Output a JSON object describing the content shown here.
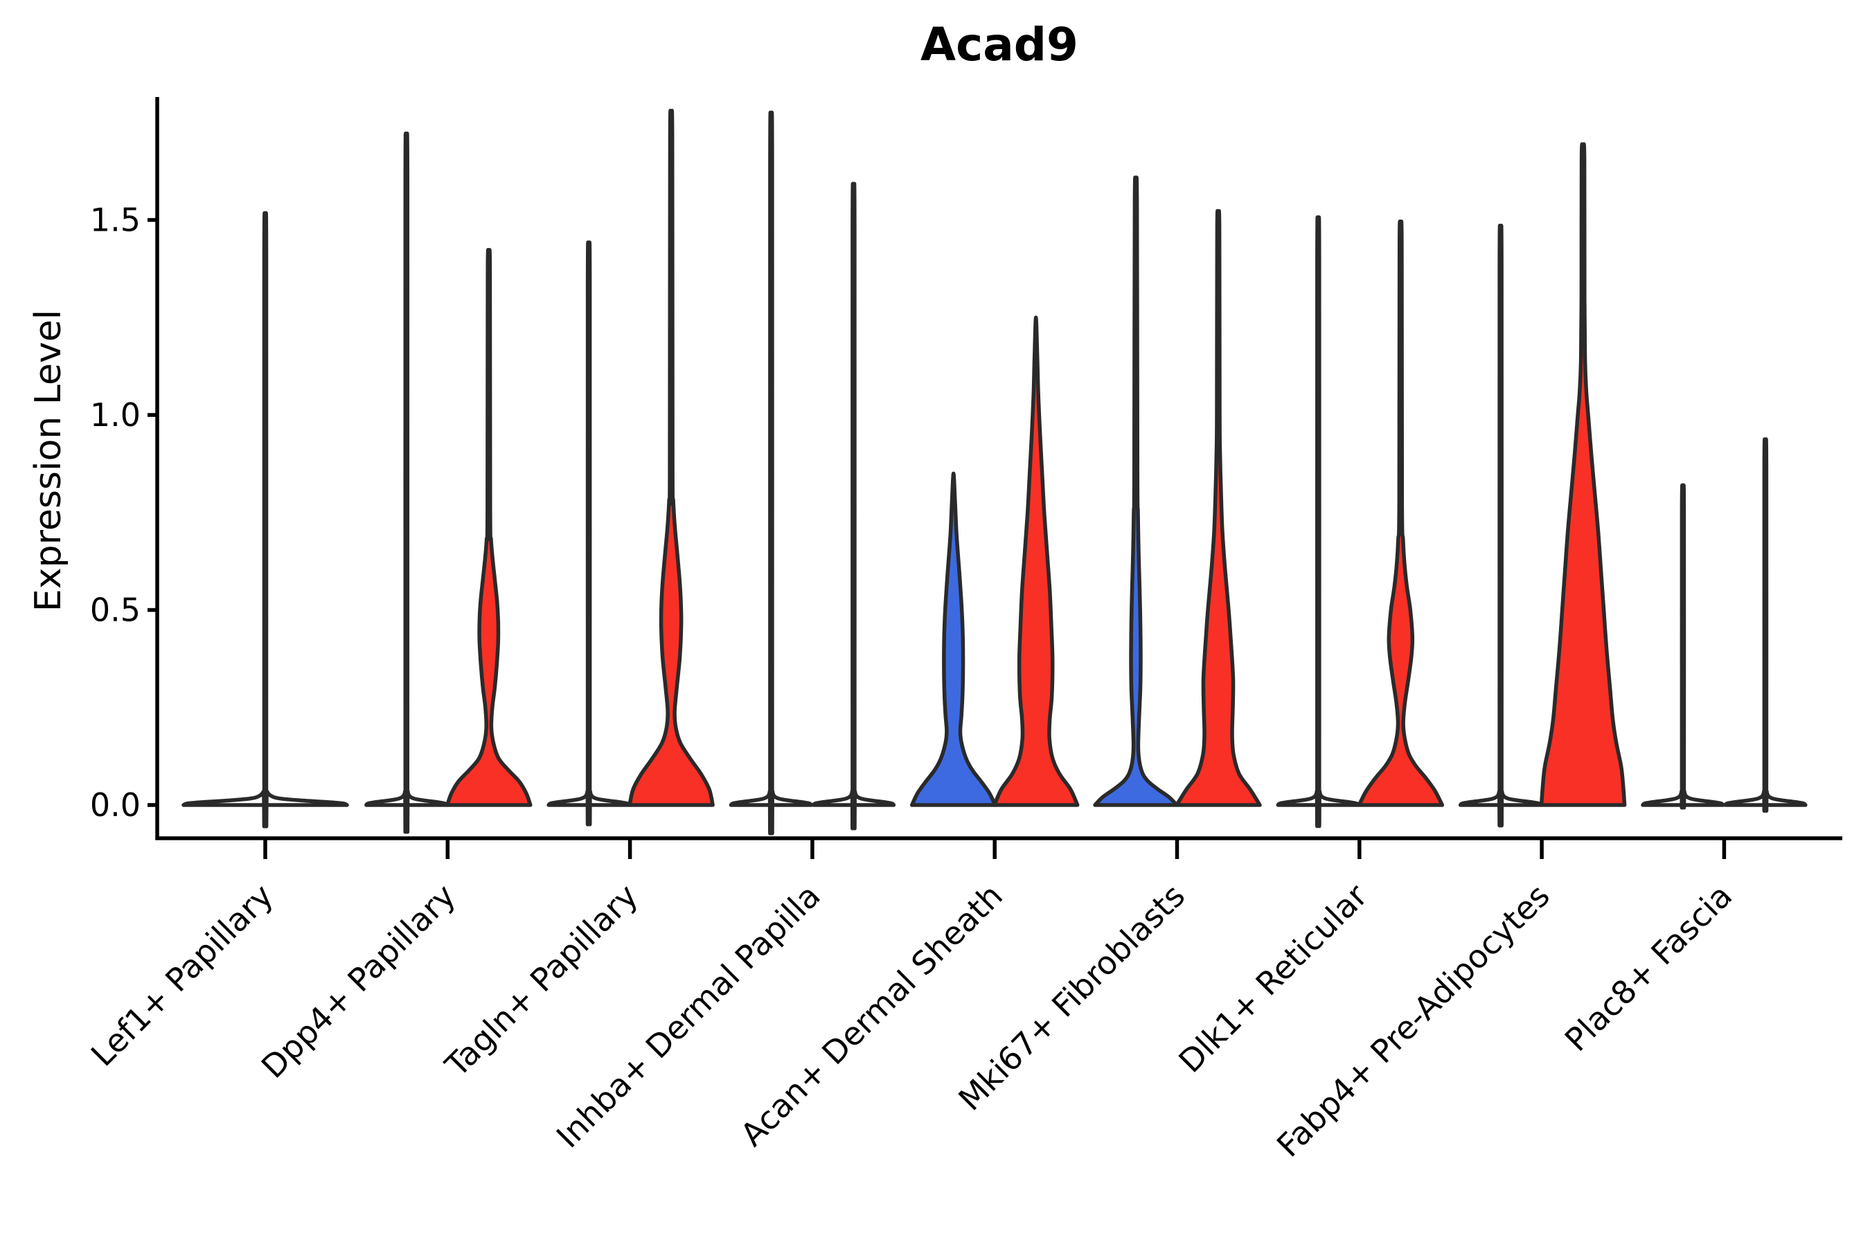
{
  "title": "Acad9",
  "ylabel": "Expression Level",
  "colors": {
    "red": "#f93026",
    "blue": "#3e6ae1",
    "violin_edge": "#2a2a2a",
    "axis": "#000000",
    "background": "#ffffff"
  },
  "chart_data": {
    "type": "violin",
    "title": "Acad9",
    "xlabel": "",
    "ylabel": "Expression Level",
    "ylim": [
      -0.08,
      1.82
    ],
    "grid": "off",
    "legend_position": "none",
    "ytick_labels": [
      "0.0",
      "0.5",
      "1.0",
      "1.5"
    ],
    "ytick_values": [
      0,
      0.5,
      1.0,
      1.5
    ],
    "categories": [
      "Lef1+ Papillary",
      "Dpp4+ Papillary",
      "Tagln+ Papillary",
      "Inhba+ Dermal Papilla",
      "Acan+ Dermal Sheath",
      "Mki67+ Fibroblasts",
      "Dlk1+ Reticular",
      "Fabp4+ Pre-Adipocytes",
      "Plac8+ Fascia"
    ],
    "violins": [
      {
        "category": 0,
        "position": "center",
        "fill": "none",
        "max_expression": 1.43,
        "profile": [
          [
            0,
            118
          ],
          [
            0.004,
            112
          ],
          [
            0.008,
            86
          ],
          [
            0.012,
            50
          ],
          [
            0.017,
            20
          ],
          [
            0.024,
            8
          ],
          [
            0.035,
            2.5
          ],
          [
            0.05,
            1.5
          ],
          [
            1.41,
            1.5
          ],
          [
            1.43,
            0
          ]
        ]
      },
      {
        "category": 1,
        "position": "left",
        "fill": "none",
        "max_expression": 1.62,
        "profile": [
          [
            0,
            58
          ],
          [
            0.004,
            55
          ],
          [
            0.008,
            42
          ],
          [
            0.012,
            24
          ],
          [
            0.017,
            10
          ],
          [
            0.024,
            4
          ],
          [
            0.035,
            2
          ],
          [
            0.05,
            1.5
          ],
          [
            1.6,
            1.5
          ],
          [
            1.62,
            0
          ]
        ]
      },
      {
        "category": 1,
        "position": "right",
        "fill": "red",
        "max_expression": 1.39,
        "profile": [
          [
            0,
            60
          ],
          [
            0.03,
            54
          ],
          [
            0.06,
            44
          ],
          [
            0.09,
            28
          ],
          [
            0.12,
            14
          ],
          [
            0.16,
            6.5
          ],
          [
            0.2,
            3.6
          ],
          [
            0.25,
            5
          ],
          [
            0.3,
            8.5
          ],
          [
            0.36,
            11.5
          ],
          [
            0.42,
            13.5
          ],
          [
            0.47,
            13.5
          ],
          [
            0.52,
            12
          ],
          [
            0.58,
            8.5
          ],
          [
            0.63,
            5.5
          ],
          [
            0.68,
            3.2
          ],
          [
            0.75,
            2
          ],
          [
            1.37,
            1.6
          ],
          [
            1.39,
            0
          ]
        ]
      },
      {
        "category": 2,
        "position": "left",
        "fill": "none",
        "max_expression": 1.36,
        "profile": [
          [
            0,
            58
          ],
          [
            0.004,
            55
          ],
          [
            0.008,
            42
          ],
          [
            0.012,
            24
          ],
          [
            0.017,
            10
          ],
          [
            0.024,
            4
          ],
          [
            0.035,
            2
          ],
          [
            0.05,
            1.5
          ],
          [
            1.34,
            1.5
          ],
          [
            1.36,
            0
          ]
        ]
      },
      {
        "category": 2,
        "position": "right",
        "fill": "red",
        "max_expression": 1.73,
        "profile": [
          [
            0,
            60
          ],
          [
            0.04,
            55
          ],
          [
            0.08,
            43
          ],
          [
            0.12,
            27
          ],
          [
            0.16,
            13
          ],
          [
            0.2,
            6.5
          ],
          [
            0.24,
            5
          ],
          [
            0.3,
            8
          ],
          [
            0.38,
            12.5
          ],
          [
            0.46,
            14.5
          ],
          [
            0.52,
            14
          ],
          [
            0.58,
            12
          ],
          [
            0.66,
            8
          ],
          [
            0.72,
            5
          ],
          [
            0.78,
            3
          ],
          [
            0.86,
            2
          ],
          [
            1.71,
            1.6
          ],
          [
            1.73,
            0
          ]
        ]
      },
      {
        "category": 3,
        "position": "left",
        "fill": "none",
        "max_expression": 1.67,
        "profile": [
          [
            0,
            58
          ],
          [
            0.004,
            55
          ],
          [
            0.008,
            42
          ],
          [
            0.012,
            24
          ],
          [
            0.017,
            10
          ],
          [
            0.024,
            4
          ],
          [
            0.035,
            2
          ],
          [
            0.05,
            1.5
          ],
          [
            1.65,
            1.5
          ],
          [
            1.67,
            0
          ]
        ]
      },
      {
        "category": 3,
        "position": "right",
        "fill": "none",
        "max_expression": 1.5,
        "profile": [
          [
            0,
            58
          ],
          [
            0.004,
            55
          ],
          [
            0.008,
            42
          ],
          [
            0.012,
            24
          ],
          [
            0.017,
            10
          ],
          [
            0.024,
            4
          ],
          [
            0.035,
            2
          ],
          [
            0.05,
            1.5
          ],
          [
            1.48,
            1.5
          ],
          [
            1.5,
            0
          ]
        ]
      },
      {
        "category": 4,
        "position": "left",
        "fill": "blue",
        "max_expression": 0.85,
        "profile": [
          [
            0,
            60
          ],
          [
            0.03,
            52
          ],
          [
            0.06,
            40
          ],
          [
            0.09,
            27
          ],
          [
            0.12,
            18
          ],
          [
            0.16,
            11.5
          ],
          [
            0.19,
            9.8
          ],
          [
            0.23,
            11.5
          ],
          [
            0.28,
            13
          ],
          [
            0.35,
            13.8
          ],
          [
            0.43,
            13.5
          ],
          [
            0.5,
            12
          ],
          [
            0.57,
            9.5
          ],
          [
            0.63,
            7
          ],
          [
            0.7,
            4.2
          ],
          [
            0.78,
            2.2
          ],
          [
            0.85,
            0
          ]
        ]
      },
      {
        "category": 4,
        "position": "right",
        "fill": "red",
        "max_expression": 1.25,
        "profile": [
          [
            0,
            60
          ],
          [
            0.04,
            50
          ],
          [
            0.08,
            34
          ],
          [
            0.12,
            24
          ],
          [
            0.17,
            19.5
          ],
          [
            0.22,
            20
          ],
          [
            0.28,
            23
          ],
          [
            0.37,
            24
          ],
          [
            0.45,
            22.5
          ],
          [
            0.55,
            20
          ],
          [
            0.65,
            16
          ],
          [
            0.75,
            12
          ],
          [
            0.85,
            9
          ],
          [
            0.95,
            6
          ],
          [
            1.05,
            3.5
          ],
          [
            1.15,
            2
          ],
          [
            1.25,
            0
          ]
        ]
      },
      {
        "category": 5,
        "position": "left",
        "fill": "blue",
        "max_expression": 1.57,
        "profile": [
          [
            0,
            59
          ],
          [
            0.02,
            48
          ],
          [
            0.04,
            32
          ],
          [
            0.06,
            18
          ],
          [
            0.08,
            10
          ],
          [
            0.11,
            5.2
          ],
          [
            0.15,
            3.4
          ],
          [
            0.22,
            4.6
          ],
          [
            0.3,
            6.5
          ],
          [
            0.38,
            7
          ],
          [
            0.47,
            6.5
          ],
          [
            0.55,
            5.5
          ],
          [
            0.65,
            4
          ],
          [
            0.75,
            3
          ],
          [
            0.85,
            2.3
          ],
          [
            1.55,
            1.6
          ],
          [
            1.57,
            0
          ]
        ]
      },
      {
        "category": 5,
        "position": "right",
        "fill": "red",
        "max_expression": 1.5,
        "profile": [
          [
            0,
            60
          ],
          [
            0.04,
            46
          ],
          [
            0.08,
            30
          ],
          [
            0.13,
            22
          ],
          [
            0.18,
            20
          ],
          [
            0.25,
            21
          ],
          [
            0.32,
            21.5
          ],
          [
            0.4,
            19
          ],
          [
            0.5,
            15
          ],
          [
            0.6,
            10
          ],
          [
            0.7,
            6
          ],
          [
            0.8,
            4
          ],
          [
            0.9,
            2.6
          ],
          [
            1.0,
            2
          ],
          [
            1.48,
            1.6
          ],
          [
            1.5,
            0
          ]
        ]
      },
      {
        "category": 6,
        "position": "left",
        "fill": "none",
        "max_expression": 1.42,
        "profile": [
          [
            0,
            58
          ],
          [
            0.004,
            55
          ],
          [
            0.008,
            42
          ],
          [
            0.012,
            24
          ],
          [
            0.017,
            10
          ],
          [
            0.024,
            4
          ],
          [
            0.035,
            2
          ],
          [
            0.05,
            1.5
          ],
          [
            1.4,
            1.5
          ],
          [
            1.42,
            0
          ]
        ]
      },
      {
        "category": 6,
        "position": "right",
        "fill": "red",
        "max_expression": 1.46,
        "profile": [
          [
            0,
            60
          ],
          [
            0.035,
            50
          ],
          [
            0.07,
            36
          ],
          [
            0.1,
            22
          ],
          [
            0.13,
            12
          ],
          [
            0.17,
            6
          ],
          [
            0.21,
            3.8
          ],
          [
            0.26,
            6
          ],
          [
            0.32,
            11
          ],
          [
            0.38,
            15.5
          ],
          [
            0.43,
            17
          ],
          [
            0.5,
            14
          ],
          [
            0.56,
            9
          ],
          [
            0.62,
            5.5
          ],
          [
            0.68,
            3.5
          ],
          [
            0.78,
            2
          ],
          [
            1.44,
            1.6
          ],
          [
            1.46,
            0
          ]
        ]
      },
      {
        "category": 7,
        "position": "left",
        "fill": "none",
        "max_expression": 1.4,
        "profile": [
          [
            0,
            58
          ],
          [
            0.004,
            55
          ],
          [
            0.008,
            42
          ],
          [
            0.012,
            24
          ],
          [
            0.017,
            10
          ],
          [
            0.024,
            4
          ],
          [
            0.035,
            2
          ],
          [
            0.05,
            1.5
          ],
          [
            1.38,
            1.5
          ],
          [
            1.4,
            0
          ]
        ]
      },
      {
        "category": 7,
        "position": "right",
        "fill": "red",
        "max_expression": 1.68,
        "profile": [
          [
            0,
            60
          ],
          [
            0.05,
            58
          ],
          [
            0.1,
            55
          ],
          [
            0.16,
            48
          ],
          [
            0.22,
            43
          ],
          [
            0.3,
            39
          ],
          [
            0.4,
            34
          ],
          [
            0.5,
            30
          ],
          [
            0.6,
            26
          ],
          [
            0.7,
            22
          ],
          [
            0.8,
            17
          ],
          [
            0.9,
            12
          ],
          [
            1.0,
            7.5
          ],
          [
            1.06,
            4.8
          ],
          [
            1.14,
            3
          ],
          [
            1.3,
            2.2
          ],
          [
            1.66,
            2
          ],
          [
            1.68,
            0
          ]
        ]
      },
      {
        "category": 8,
        "position": "left",
        "fill": "none",
        "max_expression": 0.78,
        "profile": [
          [
            0,
            58
          ],
          [
            0.004,
            55
          ],
          [
            0.008,
            42
          ],
          [
            0.012,
            24
          ],
          [
            0.017,
            10
          ],
          [
            0.024,
            4
          ],
          [
            0.035,
            2
          ],
          [
            0.05,
            1.5
          ],
          [
            0.76,
            1.5
          ],
          [
            0.78,
            0
          ]
        ]
      },
      {
        "category": 8,
        "position": "right",
        "fill": "none",
        "max_expression": 0.89,
        "profile": [
          [
            0,
            58
          ],
          [
            0.004,
            55
          ],
          [
            0.008,
            42
          ],
          [
            0.012,
            24
          ],
          [
            0.017,
            10
          ],
          [
            0.024,
            4
          ],
          [
            0.035,
            2
          ],
          [
            0.05,
            1.5
          ],
          [
            0.87,
            1.5
          ],
          [
            0.89,
            0
          ]
        ]
      }
    ]
  }
}
